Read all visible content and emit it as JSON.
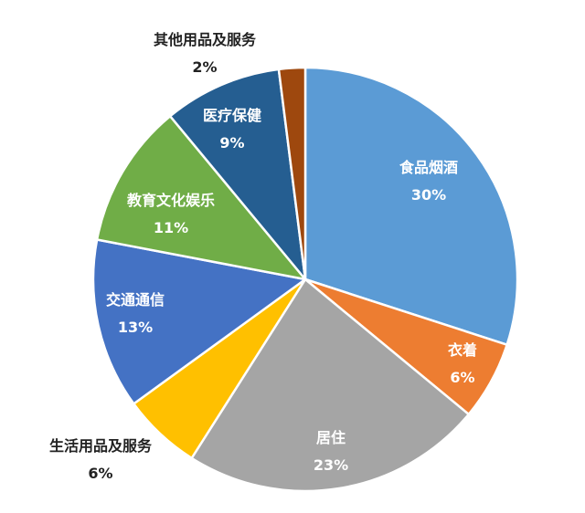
{
  "chart_data": {
    "type": "pie",
    "title": "",
    "slices": [
      {
        "label": "食品烟酒",
        "value": 30,
        "pct": "30%",
        "color": "#5B9BD5",
        "label_color": "#ffffff"
      },
      {
        "label": "衣着",
        "value": 6,
        "pct": "6%",
        "color": "#ED7D31",
        "label_color": "#ffffff"
      },
      {
        "label": "居住",
        "value": 23,
        "pct": "23%",
        "color": "#A5A5A5",
        "label_color": "#ffffff"
      },
      {
        "label": "生活用品及服务",
        "value": 6,
        "pct": "6%",
        "color": "#FFC000",
        "label_color": "#222222"
      },
      {
        "label": "交通通信",
        "value": 13,
        "pct": "13%",
        "color": "#4472C4",
        "label_color": "#ffffff"
      },
      {
        "label": "教育文化娱乐",
        "value": 11,
        "pct": "11%",
        "color": "#70AD47",
        "label_color": "#ffffff"
      },
      {
        "label": "医疗保健",
        "value": 9,
        "pct": "9%",
        "color": "#255E91",
        "label_color": "#ffffff"
      },
      {
        "label": "其他用品及服务",
        "value": 2,
        "pct": "2%",
        "color": "#9E480E",
        "label_color": "#222222"
      }
    ]
  }
}
